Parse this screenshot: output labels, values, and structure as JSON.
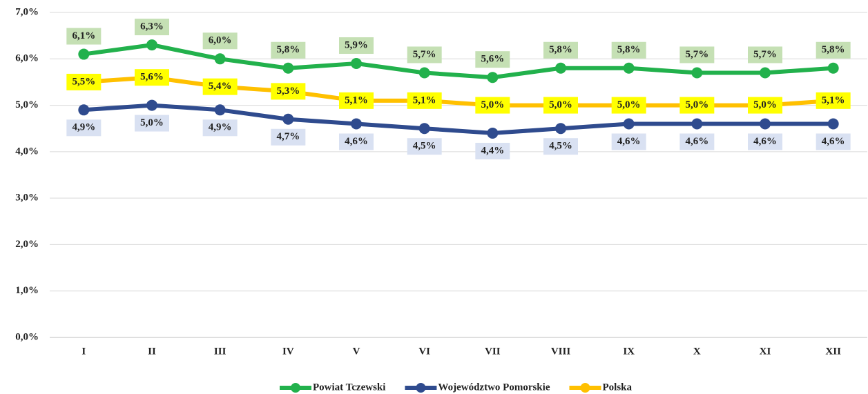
{
  "chart_data": {
    "type": "line",
    "categories": [
      "I",
      "II",
      "III",
      "IV",
      "V",
      "VI",
      "VII",
      "VIII",
      "IX",
      "X",
      "XI",
      "XII"
    ],
    "series": [
      {
        "name": "Powiat Tczewski",
        "color": "#22b14c",
        "label_color": "#c5e0b4",
        "label_position": "above",
        "values": [
          6.1,
          6.3,
          6.0,
          5.8,
          5.9,
          5.7,
          5.6,
          5.8,
          5.8,
          5.7,
          5.7,
          5.8
        ],
        "value_labels": [
          "6,1%",
          "6,3%",
          "6,0%",
          "5,8%",
          "5,9%",
          "5,7%",
          "5,6%",
          "5,8%",
          "5,8%",
          "5,7%",
          "5,7%",
          "5,8%"
        ]
      },
      {
        "name": "Województwo Pomorskie",
        "color": "#2f4b8e",
        "label_color": "#d9e1f2",
        "label_position": "below",
        "values": [
          4.9,
          5.0,
          4.9,
          4.7,
          4.6,
          4.5,
          4.4,
          4.5,
          4.6,
          4.6,
          4.6,
          4.6
        ],
        "value_labels": [
          "4,9%",
          "5,0%",
          "4,9%",
          "4,7%",
          "4,6%",
          "4,5%",
          "4,4%",
          "4,5%",
          "4,6%",
          "4,6%",
          "4,6%",
          "4,6%"
        ]
      },
      {
        "name": "Polska",
        "color": "#ffc000",
        "label_color": "#ffff00",
        "label_position": "center",
        "values": [
          5.5,
          5.6,
          5.4,
          5.3,
          5.1,
          5.1,
          5.0,
          5.0,
          5.0,
          5.0,
          5.0,
          5.1
        ],
        "value_labels": [
          "5,5%",
          "5,6%",
          "5,4%",
          "5,3%",
          "5,1%",
          "5,1%",
          "5,0%",
          "5,0%",
          "5,0%",
          "5,0%",
          "5,0%",
          "5,1%"
        ]
      }
    ],
    "ylim": [
      0,
      7
    ],
    "yticks": [
      {
        "value": 0,
        "label": "0,0%"
      },
      {
        "value": 1,
        "label": "1,0%"
      },
      {
        "value": 2,
        "label": "2,0%"
      },
      {
        "value": 3,
        "label": "3,0%"
      },
      {
        "value": 4,
        "label": "4,0%"
      },
      {
        "value": 5,
        "label": "5,0%"
      },
      {
        "value": 6,
        "label": "6,0%"
      },
      {
        "value": 7,
        "label": "7,0%"
      }
    ],
    "grid": true,
    "legend": "bottom"
  }
}
